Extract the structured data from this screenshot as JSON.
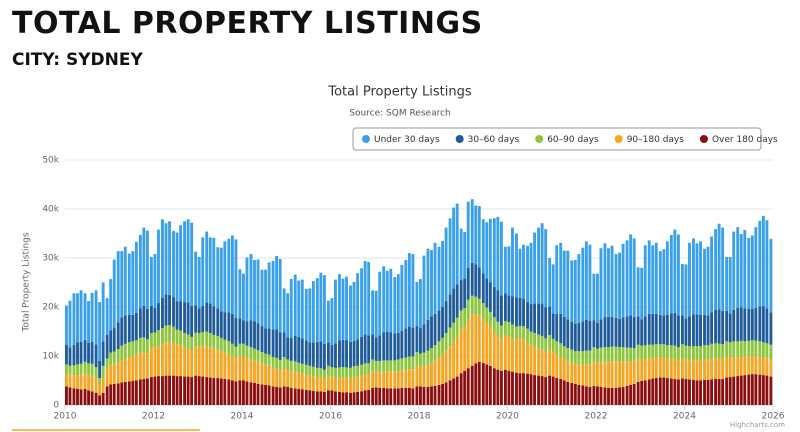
{
  "header": {
    "title": "TOTAL PROPERTY LISTINGS",
    "subtitle": "CITY: SYDNEY"
  },
  "chart_data": {
    "type": "stacked_bar",
    "title": "Total Property Listings",
    "subtitle": "Source: SQM Research",
    "y_label": "Total Property Listings",
    "credit": "Highcharts.com",
    "xlim": [
      2010,
      2026
    ],
    "xticks": [
      2010,
      2012,
      2014,
      2016,
      2018,
      2020,
      2022,
      2024,
      2026
    ],
    "ylim": [
      0,
      50000
    ],
    "yticks": [
      0,
      {
        "value": 10000,
        "label": "10k"
      },
      {
        "value": 20000,
        "label": "20k"
      },
      {
        "value": 30000,
        "label": "30k"
      },
      {
        "value": 40000,
        "label": "40k"
      },
      {
        "value": 50000,
        "label": "50k"
      }
    ],
    "grid": true,
    "x": [
      2010,
      2010.08,
      2010.17,
      2010.25,
      2010.33,
      2010.42,
      2010.5,
      2010.58,
      2010.67,
      2010.75,
      2010.83,
      2010.92,
      2011,
      2011.08,
      2011.17,
      2011.25,
      2011.33,
      2011.42,
      2011.5,
      2011.58,
      2011.67,
      2011.75,
      2011.83,
      2011.92,
      2012,
      2012.08,
      2012.17,
      2012.25,
      2012.33,
      2012.42,
      2012.5,
      2012.58,
      2012.67,
      2012.75,
      2012.83,
      2012.92,
      2013,
      2013.08,
      2013.17,
      2013.25,
      2013.33,
      2013.42,
      2013.5,
      2013.58,
      2013.67,
      2013.75,
      2013.83,
      2013.92,
      2014,
      2014.08,
      2014.17,
      2014.25,
      2014.33,
      2014.42,
      2014.5,
      2014.58,
      2014.67,
      2014.75,
      2014.83,
      2014.92,
      2015,
      2015.08,
      2015.17,
      2015.25,
      2015.33,
      2015.42,
      2015.5,
      2015.58,
      2015.67,
      2015.75,
      2015.83,
      2015.92,
      2016,
      2016.08,
      2016.17,
      2016.25,
      2016.33,
      2016.42,
      2016.5,
      2016.58,
      2016.67,
      2016.75,
      2016.83,
      2016.92,
      2017,
      2017.08,
      2017.17,
      2017.25,
      2017.33,
      2017.42,
      2017.5,
      2017.58,
      2017.67,
      2017.75,
      2017.83,
      2017.92,
      2018,
      2018.08,
      2018.17,
      2018.25,
      2018.33,
      2018.42,
      2018.5,
      2018.58,
      2018.67,
      2018.75,
      2018.83,
      2018.92,
      2019,
      2019.08,
      2019.17,
      2019.25,
      2019.33,
      2019.42,
      2019.5,
      2019.58,
      2019.67,
      2019.75,
      2019.83,
      2019.92,
      2020,
      2020.08,
      2020.17,
      2020.25,
      2020.33,
      2020.42,
      2020.5,
      2020.58,
      2020.67,
      2020.75,
      2020.83,
      2020.92,
      2021,
      2021.08,
      2021.17,
      2021.25,
      2021.33,
      2021.42,
      2021.5,
      2021.58,
      2021.67,
      2021.75,
      2021.83,
      2021.92,
      2022,
      2022.08,
      2022.17,
      2022.25,
      2022.33,
      2022.42,
      2022.5,
      2022.58,
      2022.67,
      2022.75,
      2022.83,
      2022.92,
      2023,
      2023.08,
      2023.17,
      2023.25,
      2023.33,
      2023.42,
      2023.5,
      2023.58,
      2023.67,
      2023.75,
      2023.83,
      2023.92,
      2024,
      2024.08,
      2024.17,
      2024.25,
      2024.33,
      2024.42,
      2024.5,
      2024.58,
      2024.67,
      2024.75,
      2024.83,
      2024.92,
      2025,
      2025.08,
      2025.17,
      2025.25,
      2025.33,
      2025.42,
      2025.5,
      2025.58,
      2025.67,
      2025.75,
      2025.83,
      2025.92
    ],
    "series": [
      {
        "name": "Under 30 days",
        "color": "#3aa0e8",
        "values": [
          8000,
          9500,
          10500,
          10000,
          10500,
          9500,
          8500,
          10000,
          11000,
          12000,
          12000,
          7500,
          10500,
          14000,
          14500,
          13500,
          14000,
          12500,
          13000,
          14500,
          15000,
          16000,
          16000,
          10000,
          11000,
          15000,
          16000,
          14500,
          15000,
          13500,
          14000,
          15500,
          16500,
          17000,
          17000,
          11000,
          10500,
          14000,
          14500,
          13500,
          14000,
          12500,
          13000,
          14500,
          15000,
          16000,
          16000,
          10000,
          9500,
          13000,
          13500,
          12500,
          13000,
          11500,
          12000,
          13500,
          14000,
          15000,
          15000,
          9000,
          9000,
          12000,
          12500,
          11500,
          12000,
          10500,
          11000,
          12500,
          13000,
          14000,
          14000,
          8500,
          9500,
          13000,
          13500,
          12500,
          13000,
          11500,
          12000,
          13500,
          14000,
          15000,
          15000,
          9000,
          9500,
          13000,
          13500,
          12500,
          13000,
          11500,
          12000,
          13500,
          14000,
          15000,
          15000,
          9000,
          10000,
          14000,
          14500,
          13500,
          14500,
          13000,
          13500,
          15000,
          15500,
          16500,
          16500,
          10500,
          9500,
          13500,
          13000,
          12000,
          12500,
          11000,
          11500,
          13000,
          14000,
          15000,
          15000,
          9500,
          10000,
          14000,
          13000,
          10000,
          11000,
          11500,
          12500,
          14500,
          15500,
          16500,
          16000,
          10000,
          10000,
          14000,
          14500,
          13500,
          14000,
          12500,
          13000,
          14000,
          15000,
          16000,
          15500,
          9500,
          10000,
          14500,
          15000,
          14000,
          14500,
          13000,
          13500,
          15000,
          15500,
          16500,
          16000,
          10000,
          10500,
          14500,
          15000,
          14000,
          14500,
          13000,
          13500,
          15000,
          16000,
          17000,
          16500,
          10500,
          11000,
          15000,
          15500,
          14500,
          15000,
          13500,
          14000,
          15500,
          16500,
          17500,
          17000,
          11000,
          11500,
          16000,
          16500,
          15000,
          16000,
          14500,
          15000,
          16500,
          17500,
          18500,
          18000,
          15000
        ]
      },
      {
        "name": "30–60 days",
        "color": "#1f5c99",
        "values": [
          4000,
          3800,
          4200,
          4500,
          4500,
          4500,
          4200,
          4500,
          4700,
          3500,
          5000,
          4800,
          4500,
          4800,
          5500,
          5800,
          5800,
          5600,
          5400,
          5600,
          6000,
          6400,
          6200,
          5500,
          5000,
          5500,
          6200,
          6400,
          6200,
          6000,
          5800,
          6000,
          6300,
          6500,
          6300,
          5500,
          5000,
          5300,
          5900,
          6000,
          5800,
          5600,
          5400,
          5600,
          5900,
          6100,
          5900,
          5200,
          4800,
          5000,
          5500,
          5600,
          5500,
          5300,
          5100,
          5300,
          5600,
          5800,
          5600,
          5000,
          4500,
          4700,
          5200,
          5300,
          5200,
          5000,
          4800,
          5000,
          5300,
          5500,
          5300,
          4800,
          4600,
          5000,
          5500,
          5600,
          5500,
          5300,
          5200,
          5400,
          5700,
          5900,
          5700,
          5100,
          4800,
          5200,
          5700,
          5800,
          5700,
          5500,
          5400,
          5600,
          5900,
          6100,
          5900,
          5300,
          5200,
          5800,
          6300,
          6500,
          6400,
          6300,
          6300,
          6500,
          6800,
          7000,
          6800,
          6200,
          6000,
          6500,
          6700,
          6600,
          6400,
          6100,
          5900,
          6000,
          6200,
          6400,
          6200,
          5700,
          5500,
          5800,
          6000,
          5800,
          5600,
          5400,
          5600,
          6000,
          6300,
          6500,
          6300,
          5700,
          5200,
          5600,
          6000,
          6000,
          5900,
          5700,
          5600,
          5800,
          6100,
          6300,
          6100,
          5500,
          5300,
          5800,
          6200,
          6200,
          6100,
          5900,
          5800,
          6100,
          6400,
          6600,
          6400,
          5800,
          5400,
          5900,
          6300,
          6300,
          6200,
          6000,
          5900,
          6200,
          6500,
          6700,
          6500,
          5900,
          5600,
          6100,
          6500,
          6500,
          6400,
          6200,
          6100,
          6400,
          6800,
          7000,
          6800,
          6200,
          5900,
          6400,
          6800,
          6800,
          6700,
          6500,
          6400,
          6700,
          7100,
          7300,
          7100,
          6600
        ]
      },
      {
        "name": "60–90 days",
        "color": "#8cc63f",
        "values": [
          2000,
          1800,
          2000,
          2200,
          2200,
          2300,
          2300,
          2400,
          2200,
          1500,
          2500,
          2200,
          2500,
          2600,
          2800,
          3000,
          3000,
          3000,
          2900,
          2900,
          3000,
          3000,
          2800,
          3000,
          3000,
          3200,
          3300,
          3400,
          3300,
          3200,
          3000,
          3000,
          2900,
          2800,
          2700,
          2800,
          2800,
          2900,
          3000,
          2900,
          2800,
          2800,
          2700,
          2600,
          2600,
          2500,
          2400,
          2500,
          2500,
          2500,
          2500,
          2400,
          2400,
          2300,
          2300,
          2300,
          2200,
          2200,
          2100,
          2200,
          2100,
          2100,
          2100,
          2000,
          2000,
          2000,
          2000,
          1900,
          1900,
          1900,
          1800,
          2000,
          1900,
          2000,
          2100,
          2100,
          2100,
          2100,
          2200,
          2200,
          2200,
          2300,
          2200,
          2300,
          2200,
          2300,
          2300,
          2300,
          2300,
          2300,
          2400,
          2400,
          2500,
          2600,
          2600,
          2800,
          2700,
          2800,
          2900,
          3000,
          3100,
          3300,
          3400,
          3600,
          3800,
          3900,
          4000,
          3800,
          3800,
          4000,
          3800,
          3600,
          3400,
          3200,
          3100,
          3000,
          2900,
          2800,
          2700,
          2900,
          2900,
          2800,
          2600,
          2400,
          2600,
          2700,
          2700,
          2800,
          2800,
          2800,
          2700,
          2800,
          2700,
          2700,
          2700,
          2600,
          2600,
          2600,
          2600,
          2700,
          2700,
          2800,
          2800,
          2900,
          2900,
          3000,
          3000,
          3000,
          3000,
          3000,
          2900,
          2900,
          2800,
          2800,
          2700,
          2800,
          2700,
          2800,
          2800,
          2700,
          2700,
          2700,
          2700,
          2700,
          2800,
          2800,
          2700,
          2800,
          2800,
          2800,
          2900,
          2900,
          2900,
          2900,
          2900,
          3000,
          3000,
          3000,
          3000,
          3100,
          3100,
          3200,
          3200,
          3200,
          3100,
          3100,
          3100,
          3100,
          3100,
          3100,
          3000,
          3000
        ]
      },
      {
        "name": "90–180 days",
        "color": "#f5a623",
        "values": [
          2500,
          2600,
          2700,
          2800,
          3000,
          3200,
          3200,
          3200,
          3000,
          2000,
          3000,
          3500,
          4000,
          4000,
          4200,
          4500,
          4800,
          5000,
          5200,
          5300,
          5500,
          5500,
          5200,
          6000,
          6000,
          6200,
          6500,
          6800,
          7000,
          6800,
          6500,
          6300,
          6000,
          5800,
          5500,
          6000,
          6000,
          6200,
          6300,
          6200,
          6000,
          5800,
          5600,
          5400,
          5200,
          5000,
          4700,
          5000,
          5000,
          4800,
          4700,
          4600,
          4500,
          4300,
          4100,
          4000,
          3800,
          3700,
          3500,
          3800,
          3500,
          3400,
          3400,
          3300,
          3200,
          3100,
          3000,
          3000,
          2900,
          2800,
          2700,
          3000,
          2800,
          2800,
          2900,
          3000,
          3000,
          3000,
          3100,
          3100,
          3200,
          3200,
          3200,
          3500,
          3200,
          3200,
          3300,
          3400,
          3400,
          3400,
          3500,
          3600,
          3700,
          3800,
          3900,
          4200,
          4000,
          4200,
          4500,
          4800,
          5200,
          5600,
          6000,
          6500,
          7000,
          7500,
          8000,
          9000,
          9000,
          10000,
          10500,
          10000,
          9500,
          9000,
          8500,
          8000,
          7500,
          7000,
          6500,
          7000,
          7000,
          6800,
          6800,
          7200,
          7000,
          6500,
          6000,
          5800,
          5600,
          5400,
          5200,
          5500,
          5000,
          4800,
          4600,
          4400,
          4300,
          4200,
          4100,
          4200,
          4300,
          4500,
          4600,
          5000,
          4800,
          5000,
          5200,
          5300,
          5400,
          5400,
          5300,
          5200,
          5000,
          4800,
          4600,
          4800,
          4500,
          4400,
          4300,
          4200,
          4200,
          4100,
          4100,
          4000,
          4000,
          4000,
          3900,
          4200,
          4000,
          4000,
          4000,
          4100,
          4100,
          4200,
          4200,
          4300,
          4300,
          4200,
          4100,
          4300,
          4000,
          4000,
          3900,
          3900,
          3800,
          3800,
          3800,
          3700,
          3700,
          3600,
          3600,
          3500
        ]
      },
      {
        "name": "Over 180 days",
        "color": "#8b0e0e",
        "values": [
          3800,
          3600,
          3400,
          3300,
          3200,
          3300,
          3000,
          2800,
          2500,
          2000,
          2500,
          3800,
          4200,
          4300,
          4400,
          4600,
          4700,
          4800,
          4900,
          5000,
          5200,
          5300,
          5400,
          5700,
          5800,
          5900,
          5900,
          6000,
          6000,
          6000,
          5900,
          5900,
          5800,
          5800,
          5700,
          6000,
          5900,
          5800,
          5700,
          5600,
          5500,
          5500,
          5400,
          5300,
          5200,
          5000,
          4800,
          5000,
          5000,
          4800,
          4600,
          4500,
          4300,
          4200,
          4100,
          4000,
          3800,
          3700,
          3600,
          3800,
          3700,
          3500,
          3400,
          3300,
          3200,
          3100,
          3000,
          2900,
          2800,
          2800,
          2700,
          3000,
          3000,
          2800,
          2700,
          2600,
          2600,
          2500,
          2600,
          2700,
          2800,
          3000,
          3100,
          3500,
          3600,
          3500,
          3500,
          3400,
          3400,
          3400,
          3400,
          3500,
          3500,
          3500,
          3400,
          3800,
          3800,
          3700,
          3700,
          3800,
          3900,
          4100,
          4300,
          4600,
          5000,
          5400,
          5800,
          6500,
          7000,
          7500,
          8000,
          8500,
          8800,
          8600,
          8300,
          8000,
          7500,
          7200,
          7000,
          7200,
          7000,
          6800,
          6600,
          6500,
          6500,
          6400,
          6300,
          6100,
          6000,
          5900,
          5700,
          6000,
          5800,
          5500,
          5300,
          5000,
          4700,
          4500,
          4300,
          4100,
          4000,
          3800,
          3700,
          3900,
          3800,
          3700,
          3600,
          3500,
          3500,
          3500,
          3600,
          3700,
          3900,
          4100,
          4300,
          4700,
          4900,
          5000,
          5200,
          5400,
          5500,
          5600,
          5600,
          5500,
          5400,
          5300,
          5200,
          5400,
          5300,
          5200,
          5100,
          5000,
          5000,
          5100,
          5100,
          5200,
          5300,
          5300,
          5300,
          5600,
          5700,
          5800,
          5900,
          6000,
          6100,
          6200,
          6300,
          6300,
          6200,
          6100,
          6000,
          5800
        ]
      }
    ]
  }
}
